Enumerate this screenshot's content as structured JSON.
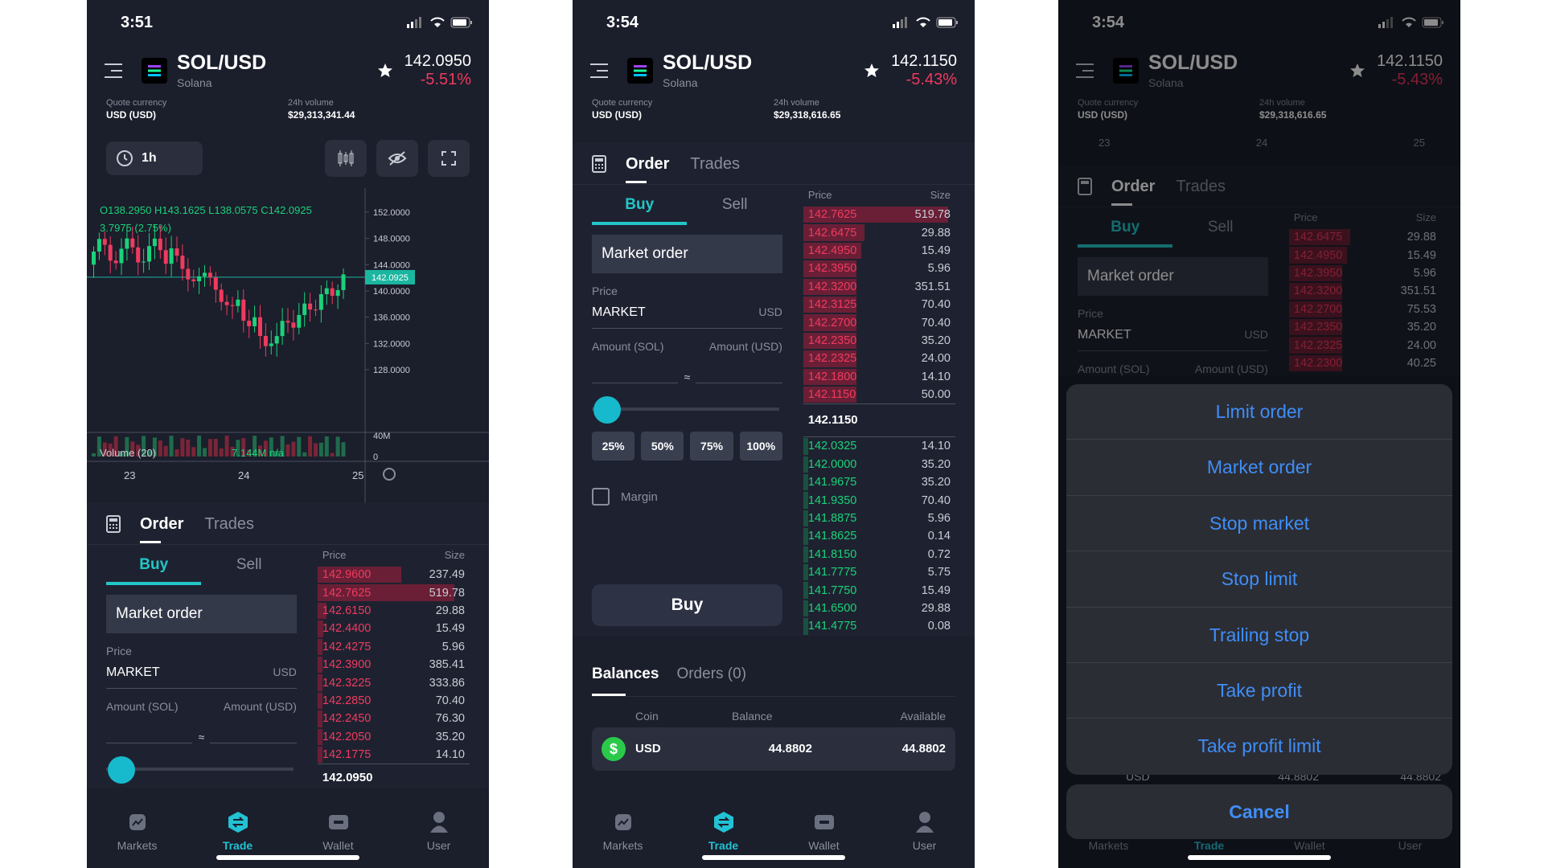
{
  "screens": [
    {
      "time": "3:51",
      "pair": "SOL/USD",
      "name": "Solana",
      "price": "142.0950",
      "change": "-5.51%",
      "quote_label": "Quote currency",
      "quote_value": "USD (USD)",
      "volume_label": "24h volume",
      "volume_value": "$29,313,341.44",
      "timeframe": "1h",
      "ohlc": "O138.2950 H143.1625 L138.0575 C142.0925",
      "change_line": "3.7975 (2.75%)",
      "price_axis": [
        "152.0000",
        "148.0000",
        "144.0000",
        "140.0000",
        "136.0000",
        "132.0000",
        "128.0000"
      ],
      "price_tag": "142.0925",
      "volume_label_chart": "Volume (20)",
      "volume_value_chart": "7.144M n/a",
      "volume_axis": [
        "40M",
        "0"
      ],
      "x_ticks": [
        "23",
        "24",
        "25"
      ],
      "tabs": [
        "Order",
        "Trades"
      ],
      "buy": "Buy",
      "sell": "Sell",
      "order_type": "Market order",
      "price_label": "Price",
      "price_value": "MARKET",
      "price_unit": "USD",
      "amount_sol": "Amount (SOL)",
      "amount_usd": "Amount (USD)",
      "approx": "≈",
      "book_price_hdr": "Price",
      "book_size_hdr": "Size",
      "asks": [
        [
          "142.9600",
          "237.49",
          0.55
        ],
        [
          "142.7625",
          "519.78",
          0.9
        ],
        [
          "142.6150",
          "29.88",
          0.06
        ],
        [
          "142.4400",
          "15.49",
          0.04
        ],
        [
          "142.4275",
          "5.96",
          0.03
        ],
        [
          "142.3900",
          "385.41",
          0.03
        ],
        [
          "142.3225",
          "333.86",
          0.03
        ],
        [
          "142.2850",
          "70.40",
          0.03
        ],
        [
          "142.2450",
          "76.30",
          0.03
        ],
        [
          "142.2050",
          "35.20",
          0.03
        ],
        [
          "142.1775",
          "14.10",
          0.03
        ]
      ],
      "mid_partial": "142.0950"
    },
    {
      "time": "3:54",
      "pair": "SOL/USD",
      "name": "Solana",
      "price": "142.1150",
      "change": "-5.43%",
      "quote_label": "Quote currency",
      "quote_value": "USD (USD)",
      "volume_label": "24h volume",
      "volume_value": "$29,318,616.65",
      "tabs": [
        "Order",
        "Trades"
      ],
      "buy": "Buy",
      "sell": "Sell",
      "order_type": "Market order",
      "price_label": "Price",
      "price_value": "MARKET",
      "price_unit": "USD",
      "amount_sol": "Amount (SOL)",
      "amount_usd": "Amount (USD)",
      "approx": "≈",
      "percent_buttons": [
        "25%",
        "50%",
        "75%",
        "100%"
      ],
      "margin_label": "Margin",
      "buy_button": "Buy",
      "book_price_hdr": "Price",
      "book_size_hdr": "Size",
      "asks": [
        [
          "142.7625",
          "519.78",
          0.95
        ],
        [
          "142.6475",
          "29.88",
          0.4
        ],
        [
          "142.4950",
          "15.49",
          0.38
        ],
        [
          "142.3950",
          "5.96",
          0.35
        ],
        [
          "142.3200",
          "351.51",
          0.35
        ],
        [
          "142.3125",
          "70.40",
          0.35
        ],
        [
          "142.2700",
          "70.40",
          0.35
        ],
        [
          "142.2350",
          "35.20",
          0.35
        ],
        [
          "142.2325",
          "24.00",
          0.35
        ],
        [
          "142.1800",
          "14.10",
          0.35
        ],
        [
          "142.1150",
          "50.00",
          0.35
        ]
      ],
      "mid": "142.1150",
      "bids": [
        [
          "142.0325",
          "14.10",
          0.03
        ],
        [
          "142.0000",
          "35.20",
          0.03
        ],
        [
          "141.9675",
          "35.20",
          0.03
        ],
        [
          "141.9350",
          "70.40",
          0.03
        ],
        [
          "141.8875",
          "5.96",
          0.03
        ],
        [
          "141.8625",
          "0.14",
          0.03
        ],
        [
          "141.8150",
          "0.72",
          0.03
        ],
        [
          "141.7775",
          "5.75",
          0.03
        ],
        [
          "141.7750",
          "15.49",
          0.03
        ],
        [
          "141.6500",
          "29.88",
          0.03
        ],
        [
          "141.4775",
          "0.08",
          0.03
        ]
      ],
      "balance_tabs": [
        "Balances",
        "Orders (0)"
      ],
      "balance_headers": [
        "Coin",
        "Balance",
        "Available"
      ],
      "balance_row": {
        "coin": "USD",
        "balance": "44.8802",
        "available": "44.8802"
      }
    },
    {
      "time": "3:54",
      "pair": "SOL/USD",
      "name": "Solana",
      "price": "142.1150",
      "change": "-5.43%",
      "quote_label": "Quote currency",
      "quote_value": "USD (USD)",
      "volume_label": "24h volume",
      "volume_value": "$29,318,616.65",
      "x_ticks": [
        "23",
        "24",
        "25"
      ],
      "tabs": [
        "Order",
        "Trades"
      ],
      "buy": "Buy",
      "sell": "Sell",
      "order_type": "Market order",
      "price_label": "Price",
      "price_value": "MARKET",
      "price_unit": "USD",
      "amount_sol": "Amount (SOL)",
      "amount_usd": "Amount (USD)",
      "book_price_hdr": "Price",
      "book_size_hdr": "Size",
      "asks": [
        [
          "142.6475",
          "29.88",
          0.4
        ],
        [
          "142.4950",
          "15.49",
          0.38
        ],
        [
          "142.3950",
          "5.96",
          0.35
        ],
        [
          "142.3200",
          "351.51",
          0.35
        ],
        [
          "142.2700",
          "75.53",
          0.35
        ],
        [
          "142.2350",
          "35.20",
          0.35
        ],
        [
          "142.2325",
          "24.00",
          0.35
        ],
        [
          "142.2300",
          "40.25",
          0.35
        ]
      ],
      "sheet_options": [
        "Limit order",
        "Market order",
        "Stop market",
        "Stop limit",
        "Trailing stop",
        "Take profit",
        "Take profit limit"
      ],
      "cancel": "Cancel",
      "behind_row": {
        "coin": "USD",
        "balance": "44.8802",
        "available": "44.8802"
      }
    }
  ],
  "nav": [
    "Markets",
    "Trade",
    "Wallet",
    "User"
  ],
  "colors": {
    "background": "#1b1e2b",
    "accent": "#22c2d4",
    "ask": "#f03a5f",
    "bid": "#1bd17a",
    "sheet_text": "#3f8ef6"
  }
}
